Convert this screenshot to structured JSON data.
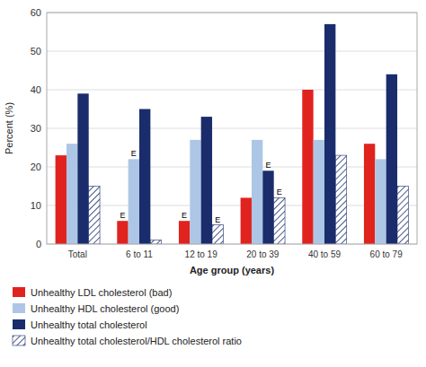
{
  "chart_data": {
    "type": "bar",
    "categories": [
      "Total",
      "6 to 11",
      "12 to 19",
      "20 to 39",
      "40 to 59",
      "60 to 79"
    ],
    "series": [
      {
        "name": "Unhealthy LDL cholesterol (bad)",
        "color": "#e0231e",
        "values": [
          23,
          6,
          6,
          12,
          40,
          26
        ],
        "annotations": [
          null,
          "E",
          "E",
          null,
          null,
          null
        ]
      },
      {
        "name": "Unhealthy HDL cholesterol (good)",
        "color": "#adc6e6",
        "values": [
          26,
          22,
          27,
          27,
          27,
          22
        ],
        "annotations": [
          null,
          "E",
          null,
          null,
          null,
          null
        ]
      },
      {
        "name": "Unhealthy total cholesterol",
        "color": "#1a2c6b",
        "values": [
          39,
          35,
          33,
          19,
          57,
          44
        ],
        "annotations": [
          null,
          null,
          null,
          "E",
          null,
          null
        ]
      },
      {
        "name": "Unhealthy total cholesterol/HDL cholesterol ratio",
        "color": "#1a2c6b",
        "values": [
          15,
          1,
          5,
          12,
          23,
          15
        ],
        "annotations": [
          null,
          null,
          "E",
          "E",
          null,
          null
        ]
      }
    ],
    "xlabel": "Age group (years)",
    "ylabel": "Percent (%)",
    "ylim": [
      0,
      60
    ],
    "yticks": [
      0,
      10,
      20,
      30,
      40,
      50,
      60
    ],
    "grid": true
  }
}
